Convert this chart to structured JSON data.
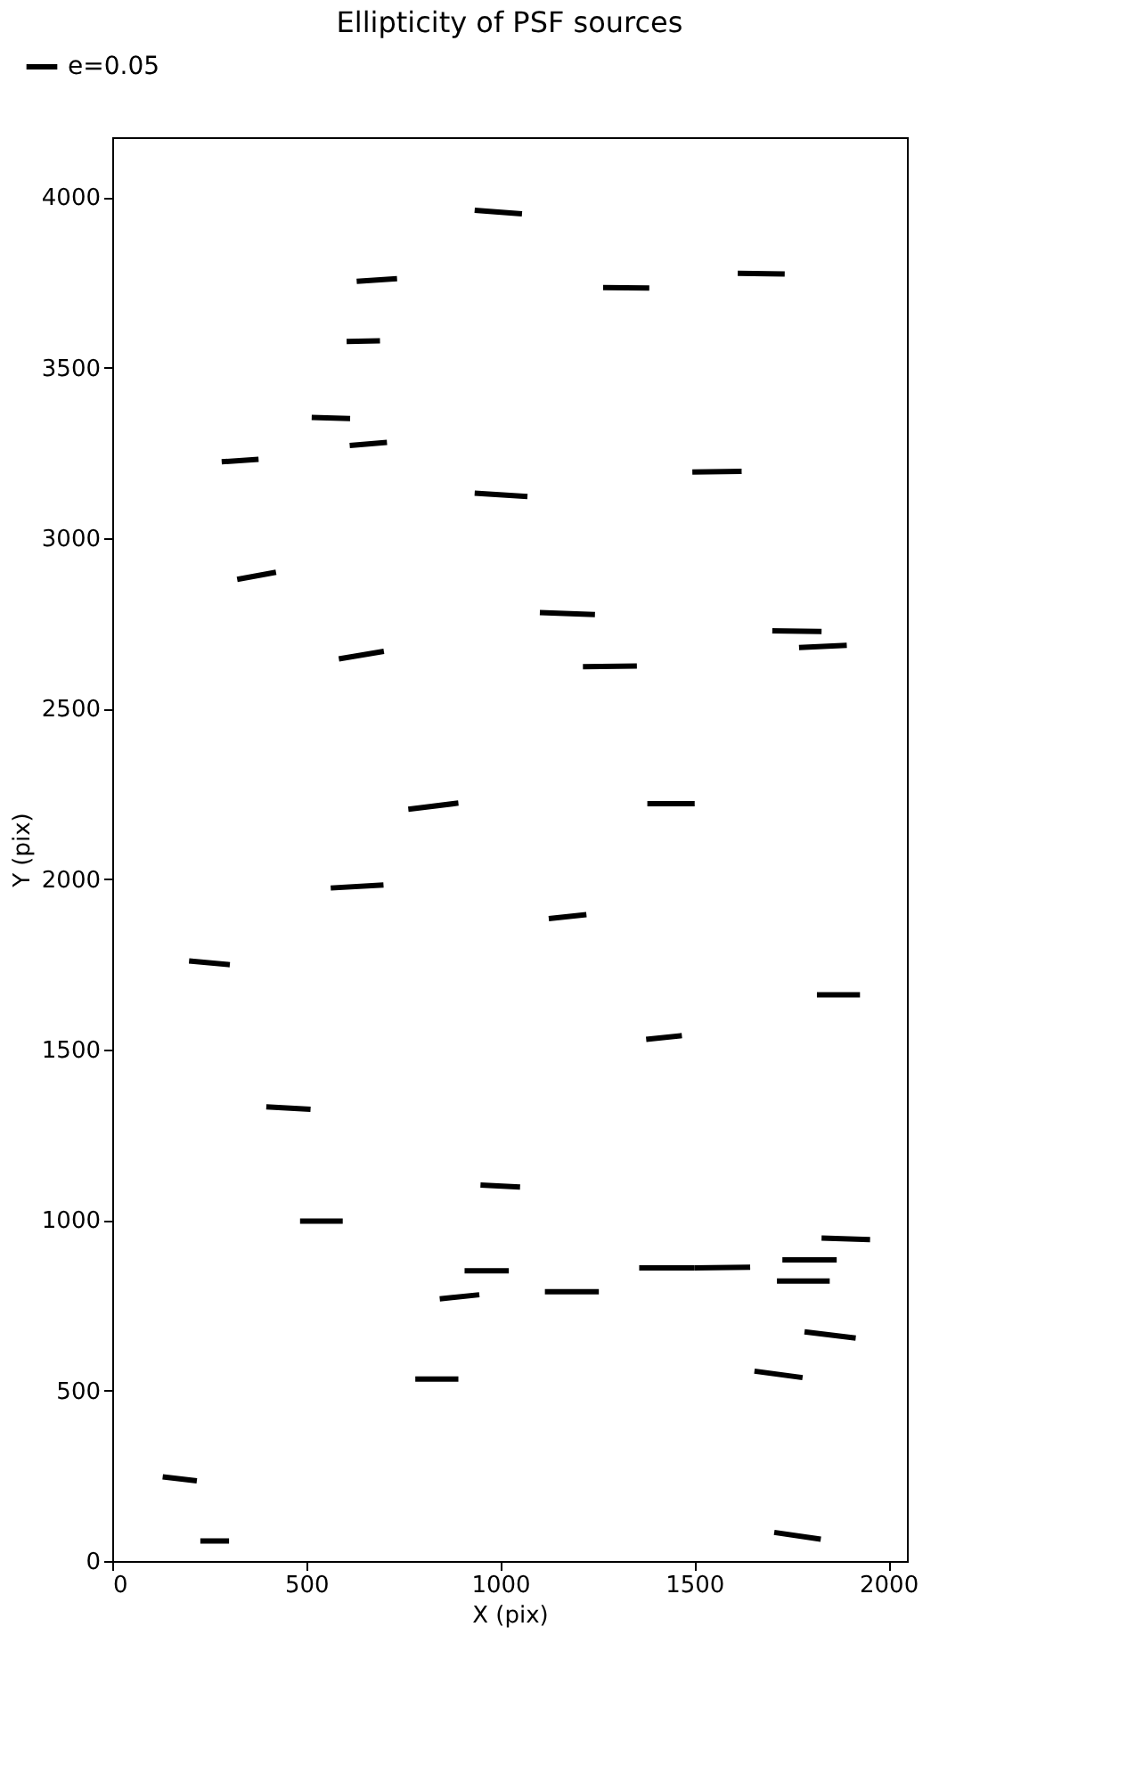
{
  "chart_data": {
    "type": "line",
    "title": "Ellipticity of PSF sources",
    "xlabel": "X (pix)",
    "ylabel": "Y (pix)",
    "xlim": [
      0,
      2048
    ],
    "ylim": [
      0,
      4176
    ],
    "xticks": [
      0,
      500,
      1000,
      1500,
      2000
    ],
    "yticks": [
      0,
      500,
      1000,
      1500,
      2000,
      2500,
      3000,
      3500,
      4000
    ],
    "grid": false,
    "legend": "top left",
    "marker": "none",
    "line_style": "solid",
    "series": [
      {
        "name": "e=0.05",
        "color": "#000000",
        "x": [
          934,
          1056,
          null,
          630,
          734,
          null,
          1265,
          1384,
          null,
          1612,
          1733,
          null,
          604,
          690,
          null,
          514,
          613,
          null,
          612,
          708,
          null,
          282,
          377,
          null,
          934,
          1070,
          null,
          1495,
          1622,
          null,
          322,
          422,
          null,
          1102,
          1244,
          null,
          1701,
          1828,
          null,
          1770,
          1893,
          null,
          584,
          700,
          null,
          1213,
          1352,
          null,
          763,
          892,
          null,
          1379,
          1501,
          null,
          563,
          699,
          null,
          1125,
          1222,
          null,
          198,
          303,
          null,
          1816,
          1927,
          null,
          1376,
          1468,
          null,
          397,
          511,
          null,
          949,
          1051,
          null,
          484,
          594,
          null,
          1828,
          1953,
          null,
          1727,
          1867,
          null,
          1358,
          1500,
          null,
          1500,
          1644,
          null,
          908,
          1022,
          null,
          1713,
          1849,
          null,
          844,
          946,
          null,
          1115,
          1254,
          null,
          1784,
          1916,
          null,
          781,
          892,
          null,
          1655,
          1779,
          null,
          130,
          218,
          null,
          227,
          301,
          null,
          1706,
          1826
        ],
        "values": [
          3962,
          3951,
          null,
          3753,
          3761,
          null,
          3735,
          3734,
          null,
          3777,
          3775,
          null,
          3577,
          3579,
          null,
          3354,
          3351,
          null,
          3272,
          3281,
          null,
          3224,
          3231,
          null,
          3132,
          3122,
          null,
          3194,
          3196,
          null,
          2879,
          2900,
          null,
          2782,
          2776,
          null,
          2728,
          2726,
          null,
          2679,
          2686,
          null,
          2646,
          2668,
          null,
          2623,
          2625,
          null,
          2205,
          2223,
          null,
          2221,
          2221,
          null,
          1974,
          1983,
          null,
          1884,
          1896,
          null,
          1760,
          1749,
          null,
          1661,
          1661,
          null,
          1530,
          1541,
          null,
          1332,
          1325,
          null,
          1103,
          1097,
          null,
          997,
          997,
          null,
          947,
          943,
          null,
          883,
          883,
          null,
          860,
          860,
          null,
          860,
          862,
          null,
          851,
          851,
          null,
          821,
          821,
          null,
          769,
          781,
          null,
          790,
          790,
          null,
          672,
          654,
          null,
          534,
          534,
          null,
          557,
          538,
          null,
          247,
          235,
          null,
          59,
          59,
          null,
          84,
          64
        ]
      }
    ]
  }
}
